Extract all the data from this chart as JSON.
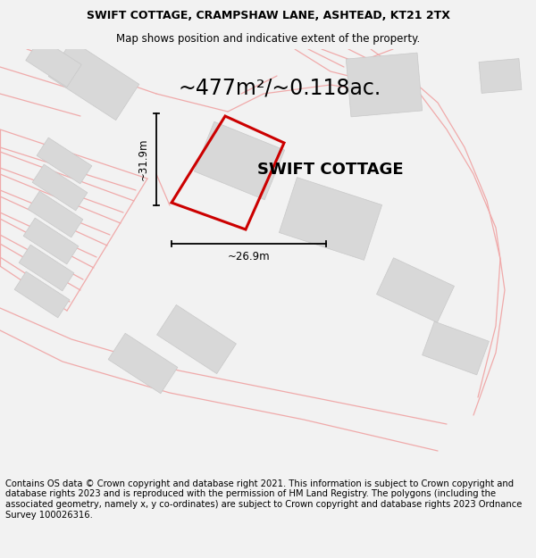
{
  "title_line1": "SWIFT COTTAGE, CRAMPSHAW LANE, ASHTEAD, KT21 2TX",
  "title_line2": "Map shows position and indicative extent of the property.",
  "area_text": "~477m²/~0.118ac.",
  "label_h": "~26.9m",
  "label_v": "~31.9m",
  "property_label": "SWIFT COTTAGE",
  "footer_text": "Contains OS data © Crown copyright and database right 2021. This information is subject to Crown copyright and database rights 2023 and is reproduced with the permission of HM Land Registry. The polygons (including the associated geometry, namely x, y co-ordinates) are subject to Crown copyright and database rights 2023 Ordnance Survey 100026316.",
  "bg_color": "#f2f2f2",
  "map_bg": "#ffffff",
  "pink_line_color": "#f0aaaa",
  "red_outline": "#cc0000",
  "grey_fill": "#d8d8d8",
  "grey_edge": "#c8c8c8",
  "title_fontsize": 9.0,
  "subtitle_fontsize": 8.5,
  "area_fontsize": 17,
  "label_fontsize": 8.5,
  "property_label_fontsize": 13,
  "footer_fontsize": 7.2
}
